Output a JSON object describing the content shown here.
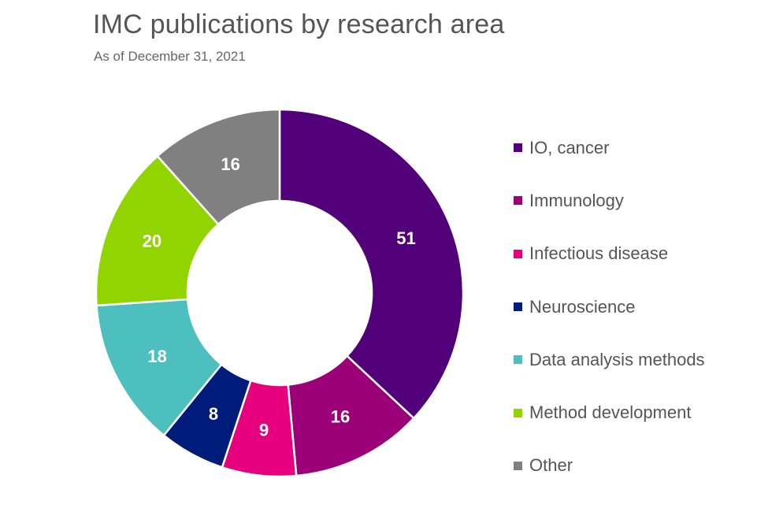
{
  "chart_data": {
    "type": "pie",
    "title": "IMC publications by research area",
    "subtitle": "As of December 31, 2021",
    "categories": [
      "IO, cancer",
      "Immunology",
      "Infectious disease",
      "Neuroscience",
      "Data analysis methods",
      "Method development",
      "Other"
    ],
    "values": [
      51,
      16,
      9,
      8,
      18,
      20,
      16
    ],
    "colors": [
      "#52007a",
      "#9b0079",
      "#e6007e",
      "#001c7a",
      "#4dbfbf",
      "#92d400",
      "#808080"
    ],
    "donut": true,
    "data_labels": true,
    "legend_position": "right"
  }
}
